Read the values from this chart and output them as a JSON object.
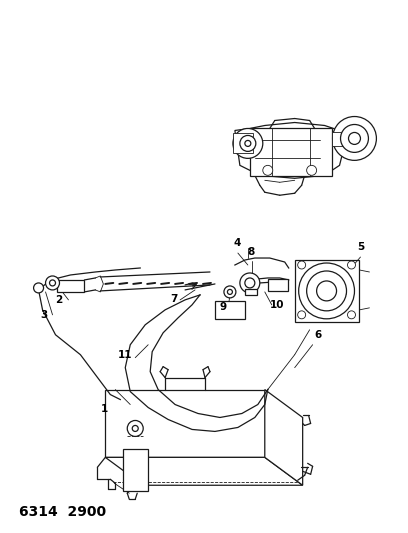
{
  "title": "6314  2900",
  "bg_color": "#ffffff",
  "line_color": "#1a1a1a",
  "fig_width": 4.08,
  "fig_height": 5.33,
  "dpi": 100,
  "lw_main": 0.9,
  "lw_thin": 0.6,
  "label_fs": 7.5,
  "title_fs": 10
}
